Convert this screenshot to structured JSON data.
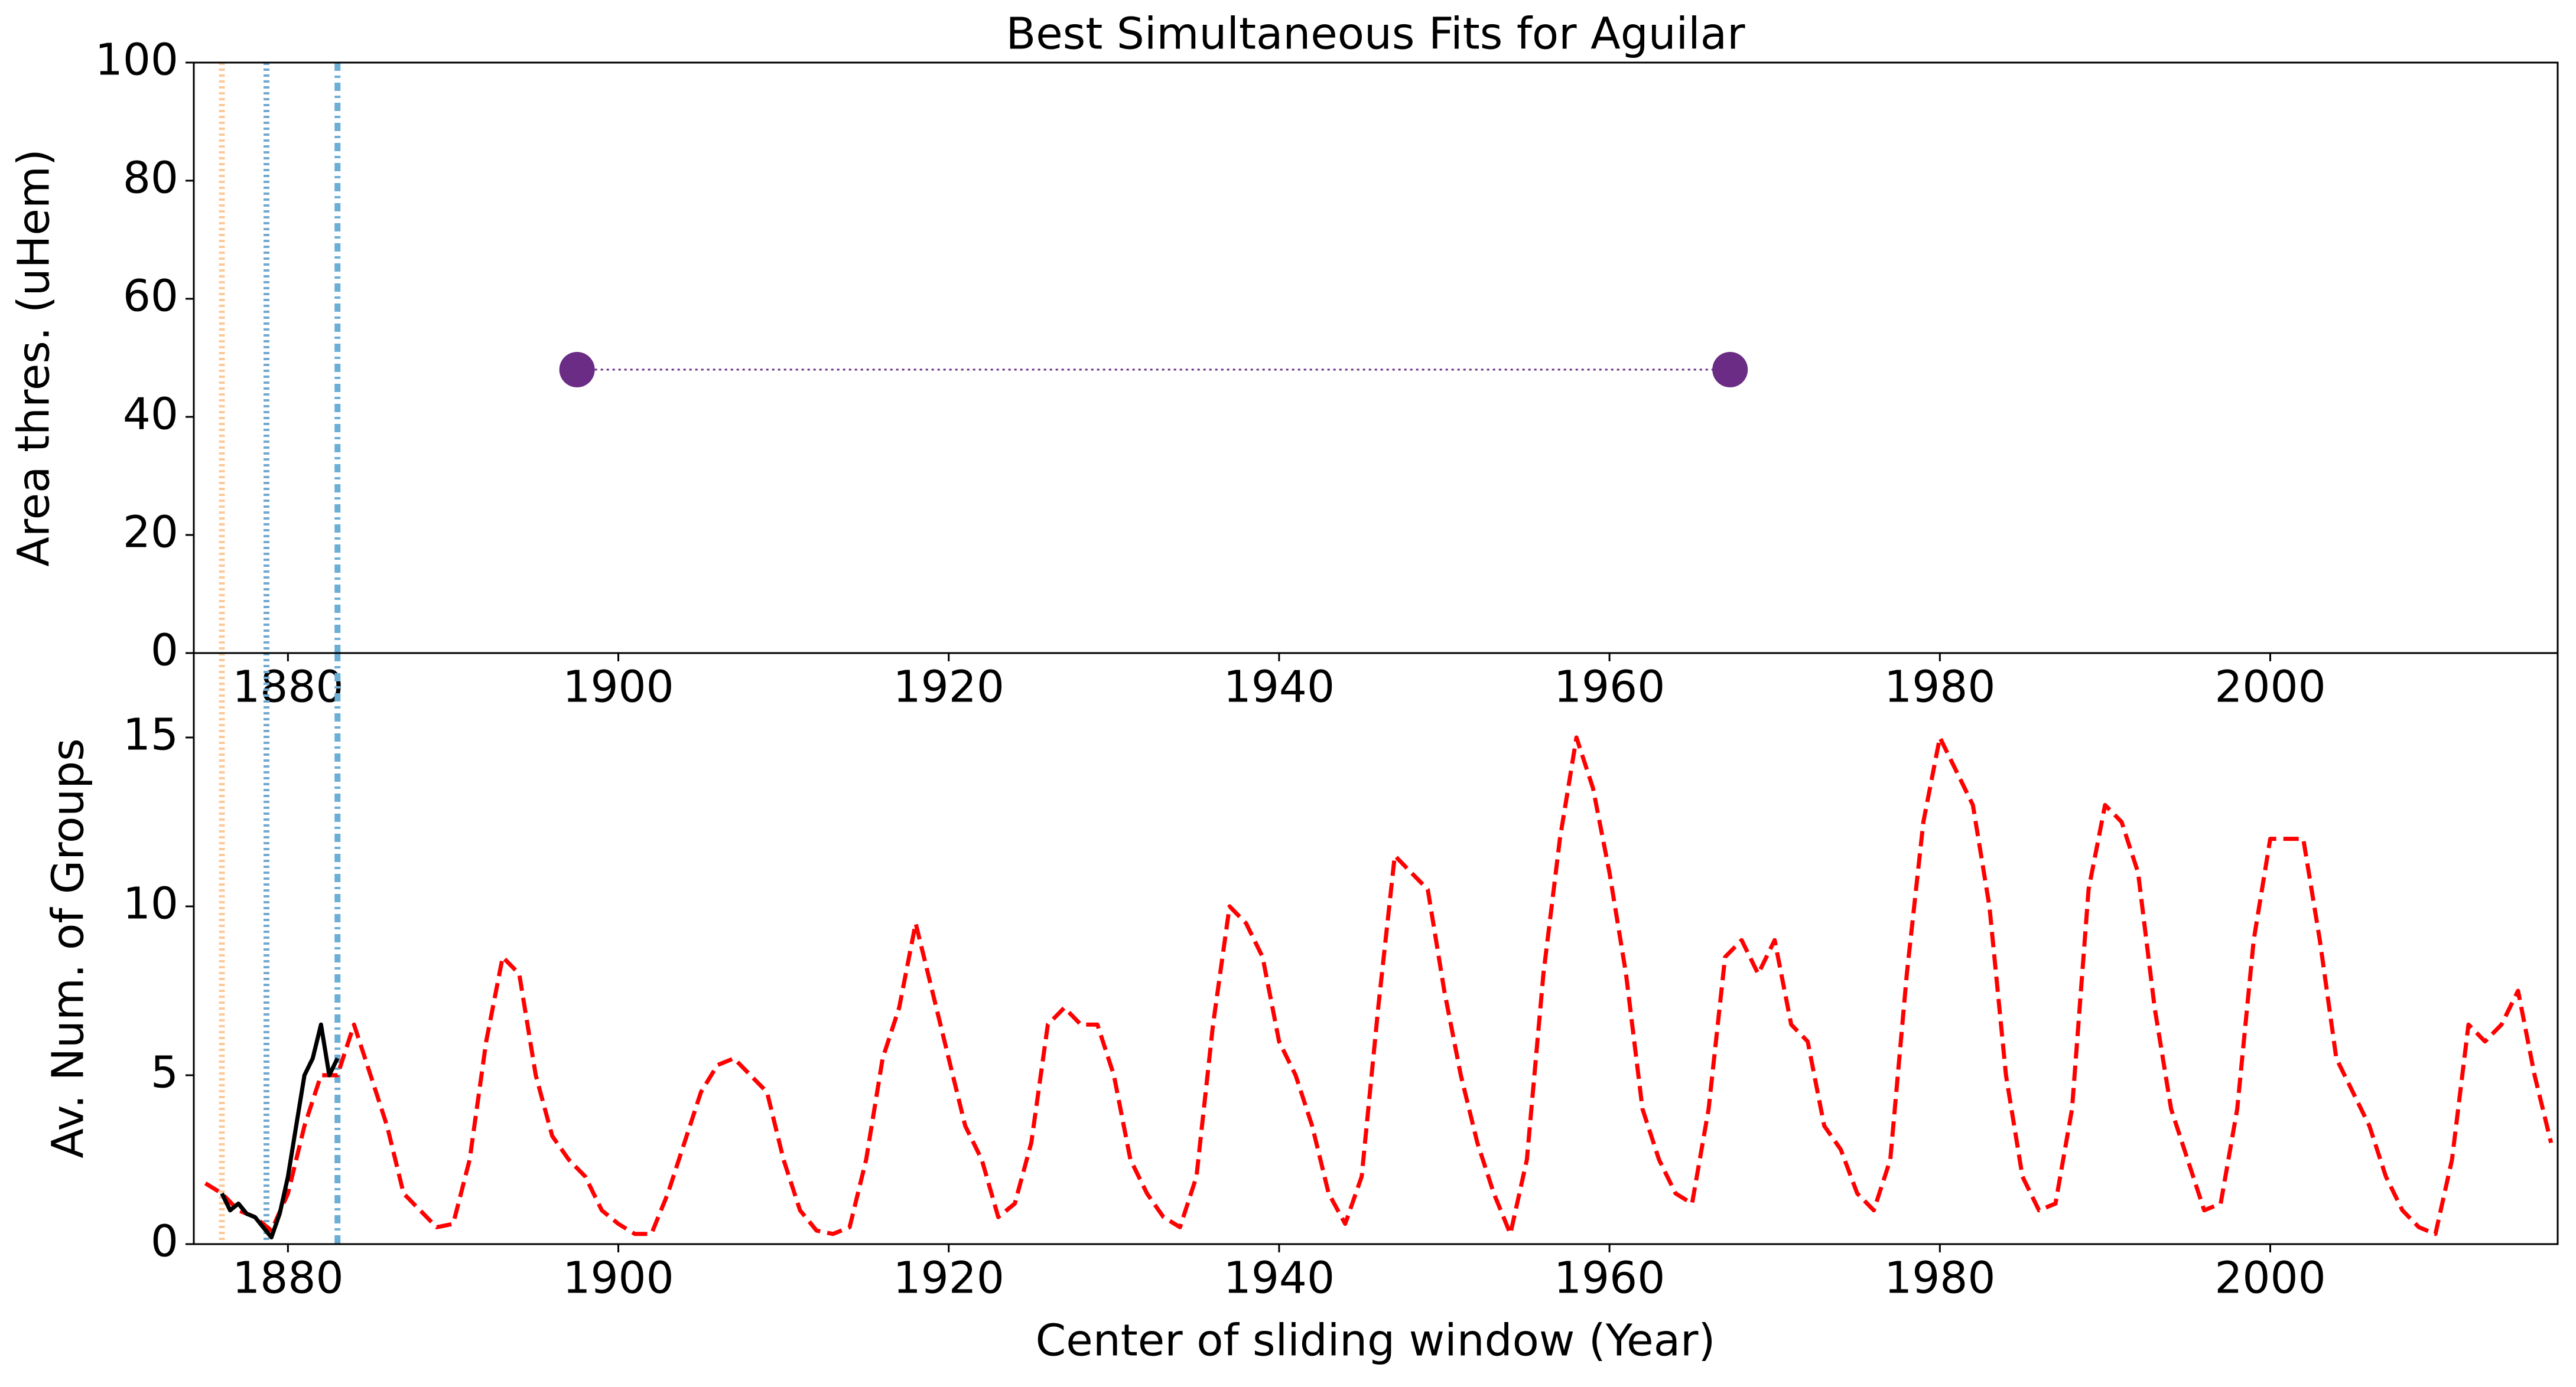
{
  "chart_data": [
    {
      "type": "scatter",
      "title": "Best Simultaneous Fits for Aguilar",
      "y_label": "Area thres. (uHem)",
      "xlim": [
        1874.3,
        2017.4
      ],
      "xticks": [
        1880,
        1900,
        1920,
        1940,
        1960,
        1980,
        2000
      ],
      "ylim": [
        0,
        100
      ],
      "yticks": [
        0,
        20,
        40,
        60,
        80,
        100
      ],
      "vlines": [
        {
          "x": 1876,
          "color": "#fdc999",
          "style": "dotted"
        },
        {
          "x": 1878.7,
          "color": "#74a9cf",
          "style": "dotted"
        },
        {
          "x": 1883,
          "color": "#6baed6",
          "style": "dashdot"
        }
      ],
      "series": [
        {
          "color": "#6a2c84",
          "line_style": "dotted",
          "marker": true,
          "x": [
            1897.5,
            1967.3
          ],
          "values": [
            48,
            48
          ]
        }
      ]
    },
    {
      "type": "line",
      "y_label": "Av. Num. of Groups",
      "x_label": "Center of sliding window (Year)",
      "xlim": [
        1874.3,
        2017.4
      ],
      "xticks": [
        1880,
        1900,
        1920,
        1940,
        1960,
        1980,
        2000
      ],
      "ylim": [
        0,
        17.5
      ],
      "yticks": [
        0,
        5,
        10,
        15
      ],
      "vlines": [
        {
          "x": 1876,
          "color": "#fdc999",
          "style": "dotted"
        },
        {
          "x": 1878.7,
          "color": "#74a9cf",
          "style": "dotted"
        },
        {
          "x": 1883,
          "color": "#6baed6",
          "style": "dashdot"
        }
      ],
      "series": [
        {
          "color": "#ff0000",
          "line_style": "dashed",
          "x": [
            1875,
            1876,
            1877,
            1878,
            1879,
            1880,
            1881,
            1882,
            1883,
            1884,
            1885,
            1886,
            1887,
            1888,
            1889,
            1890,
            1891,
            1892,
            1893,
            1894,
            1895,
            1896,
            1897,
            1898,
            1899,
            1900,
            1901,
            1902,
            1903,
            1904,
            1905,
            1906,
            1907,
            1908,
            1909,
            1910,
            1911,
            1912,
            1913,
            1914,
            1915,
            1916,
            1917,
            1918,
            1919,
            1920,
            1921,
            1922,
            1923,
            1924,
            1925,
            1926,
            1927,
            1928,
            1929,
            1930,
            1931,
            1932,
            1933,
            1934,
            1935,
            1936,
            1937,
            1938,
            1939,
            1940,
            1941,
            1942,
            1943,
            1944,
            1945,
            1946,
            1947,
            1948,
            1949,
            1950,
            1951,
            1952,
            1953,
            1954,
            1955,
            1956,
            1957,
            1958,
            1959,
            1960,
            1961,
            1962,
            1963,
            1964,
            1965,
            1966,
            1967,
            1968,
            1969,
            1970,
            1971,
            1972,
            1973,
            1974,
            1975,
            1976,
            1977,
            1978,
            1979,
            1980,
            1981,
            1982,
            1983,
            1984,
            1985,
            1986,
            1987,
            1988,
            1989,
            1990,
            1991,
            1992,
            1993,
            1994,
            1995,
            1996,
            1997,
            1998,
            1999,
            2000,
            2001,
            2002,
            2003,
            2004,
            2005,
            2006,
            2007,
            2008,
            2009,
            2010,
            2011,
            2012,
            2013,
            2014,
            2015,
            2016,
            2017
          ],
          "values": [
            1.8,
            1.5,
            1.0,
            0.8,
            0.4,
            1.5,
            3.5,
            5,
            5,
            6.5,
            5,
            3.5,
            1.5,
            1.0,
            0.5,
            0.6,
            2.5,
            6,
            8.5,
            8,
            5,
            3.2,
            2.5,
            2.0,
            1.0,
            0.6,
            0.3,
            0.3,
            1.5,
            3,
            4.5,
            5.3,
            5.5,
            5,
            4.5,
            2.5,
            1.0,
            0.4,
            0.3,
            0.5,
            2.5,
            5.5,
            7,
            9.5,
            7.5,
            5.5,
            3.5,
            2.5,
            0.8,
            1.2,
            3,
            6.5,
            7,
            6.5,
            6.5,
            5,
            2.5,
            1.5,
            0.8,
            0.5,
            2,
            6.5,
            10,
            9.5,
            8.5,
            6,
            5,
            3.5,
            1.5,
            0.6,
            2,
            7,
            11.5,
            11,
            10.5,
            7.5,
            5,
            3,
            1.5,
            0.3,
            2.5,
            8,
            12,
            15,
            13.5,
            11,
            8,
            4,
            2.5,
            1.5,
            1.2,
            4,
            8.5,
            9,
            8,
            9,
            6.5,
            6,
            3.5,
            2.8,
            1.5,
            1.0,
            2.5,
            8,
            12.5,
            15,
            14,
            13,
            10,
            5,
            2,
            1,
            1.2,
            4,
            10.5,
            13,
            12.5,
            11,
            7,
            4,
            2.5,
            1,
            1.2,
            4,
            9,
            12,
            12,
            12,
            9,
            5.5,
            4.5,
            3.5,
            2,
            1,
            0.5,
            0.3,
            2.5,
            6.5,
            6,
            6.5,
            7.5,
            5,
            3
          ]
        },
        {
          "color": "#000000",
          "line_style": "solid",
          "x": [
            1876,
            1876.5,
            1877,
            1877.5,
            1878,
            1878.5,
            1879,
            1879.5,
            1880,
            1880.5,
            1881,
            1881.5,
            1882,
            1882.5,
            1883
          ],
          "values": [
            1.5,
            1.0,
            1.2,
            0.9,
            0.8,
            0.5,
            0.2,
            0.9,
            2,
            3.5,
            5,
            5.5,
            6.5,
            5,
            5.5
          ]
        }
      ]
    }
  ]
}
